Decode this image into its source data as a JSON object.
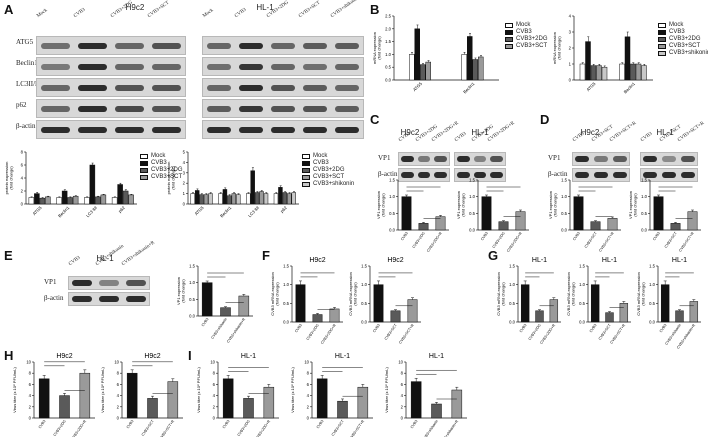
{
  "panels": {
    "A": "A",
    "B": "B",
    "C": "C",
    "D": "D",
    "E": "E",
    "F": "F",
    "G": "G",
    "H": "H",
    "I": "I"
  },
  "cells": {
    "h9c2": "H9c2",
    "hl1": "HL-1"
  },
  "blotA_left": {
    "lanes": [
      "Mock",
      "CVB3",
      "CVB3+2DG",
      "CVB3+SCT"
    ],
    "rows": [
      "ATG5",
      "Beclin1",
      "LC3II/LCI",
      "p62",
      "β-actin"
    ]
  },
  "blotA_right": {
    "lanes": [
      "Mock",
      "CVB3",
      "CVB3+2DG",
      "CVB3+SCT",
      "CVB3+shikonin"
    ]
  },
  "blotC": {
    "lanesL": [
      "CVB3",
      "CVB3+2DG",
      "CVB3+2DG+R"
    ],
    "lanesR": [
      "CVB3",
      "CVB3+2DG",
      "CVB3+2DG+R"
    ],
    "rows": [
      "VP1",
      "β-actin"
    ]
  },
  "blotD": {
    "lanesL": [
      "CVB3",
      "CVB3+SCT",
      "CVB3+SCT+R"
    ],
    "lanesR": [
      "CVB3",
      "CVB3+SCT",
      "CVB3+SCT+R"
    ],
    "rows": [
      "VP1",
      "β-actin"
    ]
  },
  "blotE": {
    "lanes": [
      "CVB3",
      "CVB3+shikonin",
      "CVB3+shikonin+R"
    ],
    "rows": [
      "VP1",
      "β-actin"
    ]
  },
  "legendA_left": [
    "Mock",
    "CVB3",
    "CVB3+2DG",
    "CVB3+SCT"
  ],
  "legendA_right": [
    "Mock",
    "CVB3",
    "CVB3+2DG",
    "CVB3+SCT",
    "CVB3+shikonin"
  ],
  "legendB_left": [
    "Mock",
    "CVB3",
    "CVB3+2DG",
    "CVB3+SCT"
  ],
  "legendB_right": [
    "Mock",
    "CVB3",
    "CVB3+2DG",
    "CVB3+SCT",
    "CVB3+shikonin"
  ],
  "colors": {
    "mock": "#ffffff",
    "cvb3": "#111111",
    "dg": "#5a5a5a",
    "sct": "#9a9a9a",
    "shikonin": "#c8c8c8",
    "band": "#1a1a1a",
    "blot_bg": "#d8d8d8"
  },
  "chart_data": [
    {
      "id": "A-left",
      "type": "bar",
      "ylabel": "protein expression\n(fold change)",
      "categories": [
        "ATG5",
        "Beclin1",
        "LC3 II/I",
        "p62"
      ],
      "ylim": [
        0,
        8
      ],
      "yticks": [
        "0",
        "2",
        "4",
        "6",
        "8"
      ],
      "series": [
        {
          "name": "Mock",
          "values": [
            1.0,
            1.0,
            1.0,
            1.0
          ],
          "err": [
            0.1,
            0.1,
            0.1,
            0.1
          ]
        },
        {
          "name": "CVB3",
          "values": [
            1.6,
            2.0,
            6.0,
            3.0
          ],
          "err": [
            0.2,
            0.2,
            0.3,
            0.2
          ]
        },
        {
          "name": "CVB3+2DG",
          "values": [
            0.9,
            1.0,
            1.1,
            2.0
          ],
          "err": [
            0.1,
            0.1,
            0.1,
            0.2
          ]
        },
        {
          "name": "CVB3+SCT",
          "values": [
            1.1,
            1.2,
            1.4,
            1.4
          ],
          "err": [
            0.1,
            0.1,
            0.1,
            0.1
          ]
        }
      ]
    },
    {
      "id": "A-right",
      "type": "bar",
      "ylabel": "protein expression\n(fold change)",
      "categories": [
        "ATG5",
        "Beclin1",
        "LC3 II/I",
        "p62"
      ],
      "ylim": [
        0,
        5
      ],
      "yticks": [
        "0",
        "1",
        "2",
        "3",
        "4",
        "5"
      ],
      "series": [
        {
          "name": "Mock",
          "values": [
            1.0,
            1.0,
            1.0,
            1.0
          ],
          "err": [
            0.1,
            0.1,
            0.1,
            0.1
          ]
        },
        {
          "name": "CVB3",
          "values": [
            1.3,
            1.4,
            3.2,
            1.6
          ],
          "err": [
            0.15,
            0.15,
            0.3,
            0.15
          ]
        },
        {
          "name": "CVB3+2DG",
          "values": [
            0.9,
            0.8,
            1.1,
            1.1
          ],
          "err": [
            0.1,
            0.1,
            0.1,
            0.1
          ]
        },
        {
          "name": "CVB3+SCT",
          "values": [
            0.9,
            1.0,
            1.2,
            1.0
          ],
          "err": [
            0.1,
            0.1,
            0.1,
            0.1
          ]
        },
        {
          "name": "CVB3+shikonin",
          "values": [
            1.0,
            0.9,
            1.0,
            1.1
          ],
          "err": [
            0.1,
            0.1,
            0.1,
            0.1
          ]
        }
      ]
    },
    {
      "id": "B-left",
      "type": "bar",
      "ylabel": "mRNA expression\n(fold change)",
      "categories": [
        "ATG5",
        "Beclin1"
      ],
      "ylim": [
        0,
        2.5
      ],
      "yticks": [
        "0.0",
        "0.5",
        "1.0",
        "1.5",
        "2.0",
        "2.5"
      ],
      "series": [
        {
          "name": "Mock",
          "values": [
            1.0,
            1.0
          ],
          "err": [
            0.08,
            0.08
          ]
        },
        {
          "name": "CVB3",
          "values": [
            2.0,
            1.7
          ],
          "err": [
            0.15,
            0.12
          ]
        },
        {
          "name": "CVB3+2DG",
          "values": [
            0.6,
            0.8
          ],
          "err": [
            0.05,
            0.06
          ]
        },
        {
          "name": "CVB3+SCT",
          "values": [
            0.7,
            0.9
          ],
          "err": [
            0.06,
            0.06
          ]
        }
      ]
    },
    {
      "id": "B-right",
      "type": "bar",
      "ylabel": "mRNA expression\n(fold change)",
      "categories": [
        "ATG5",
        "Beclin1"
      ],
      "ylim": [
        0,
        4
      ],
      "yticks": [
        "0",
        "1",
        "2",
        "3",
        "4"
      ],
      "series": [
        {
          "name": "Mock",
          "values": [
            1.0,
            1.0
          ],
          "err": [
            0.08,
            0.08
          ]
        },
        {
          "name": "CVB3",
          "values": [
            2.4,
            2.7
          ],
          "err": [
            0.3,
            0.3
          ]
        },
        {
          "name": "CVB3+2DG",
          "values": [
            0.9,
            1.0
          ],
          "err": [
            0.08,
            0.08
          ]
        },
        {
          "name": "CVB3+SCT",
          "values": [
            0.9,
            1.0
          ],
          "err": [
            0.08,
            0.08
          ]
        },
        {
          "name": "CVB3+shikonin",
          "values": [
            0.8,
            0.9
          ],
          "err": [
            0.08,
            0.08
          ]
        }
      ]
    },
    {
      "id": "C-1",
      "type": "bar",
      "ylabel": "VP1 expression\n(fold change)",
      "categories": [
        "CVB3",
        "CVB3+2DG",
        "CVB3+2DG+R"
      ],
      "values": [
        1.0,
        0.2,
        0.4
      ],
      "err": [
        0.05,
        0.03,
        0.04
      ],
      "ylim": [
        0,
        1.5
      ],
      "yticks": [
        "0.0",
        "0.5",
        "1.0",
        "1.5"
      ]
    },
    {
      "id": "C-2",
      "type": "bar",
      "ylabel": "VP1 expression\n(fold change)",
      "categories": [
        "CVB3",
        "CVB3+2DG",
        "CVB3+2DG+R"
      ],
      "values": [
        1.0,
        0.25,
        0.55
      ],
      "err": [
        0.05,
        0.03,
        0.05
      ],
      "ylim": [
        0,
        1.5
      ],
      "yticks": [
        "0.0",
        "0.5",
        "1.0",
        "1.5"
      ]
    },
    {
      "id": "D-1",
      "type": "bar",
      "ylabel": "VP1 expression\n(fold change)",
      "categories": [
        "CVB3",
        "CVB3+SCT",
        "CVB3+SCT+R"
      ],
      "values": [
        1.0,
        0.25,
        0.35
      ],
      "err": [
        0.05,
        0.03,
        0.04
      ],
      "ylim": [
        0,
        1.5
      ],
      "yticks": [
        "0.0",
        "0.5",
        "1.0",
        "1.5"
      ]
    },
    {
      "id": "D-2",
      "type": "bar",
      "ylabel": "VP1 expression\n(fold change)",
      "categories": [
        "CVB3",
        "CVB3+SCT",
        "CVB3+SCT+R"
      ],
      "values": [
        1.0,
        0.2,
        0.55
      ],
      "err": [
        0.05,
        0.03,
        0.05
      ],
      "ylim": [
        0,
        1.5
      ],
      "yticks": [
        "0.0",
        "0.5",
        "1.0",
        "1.5"
      ]
    },
    {
      "id": "E",
      "type": "bar",
      "ylabel": "VP1 expression\n(fold change)",
      "categories": [
        "CVB3",
        "CVB3+shikonin",
        "CVB3+shikonin+R"
      ],
      "values": [
        1.0,
        0.25,
        0.6
      ],
      "err": [
        0.05,
        0.03,
        0.05
      ],
      "ylim": [
        0,
        1.5
      ],
      "yticks": [
        "0.0",
        "0.5",
        "1.0",
        "1.5"
      ]
    },
    {
      "id": "F-1",
      "type": "bar",
      "title": "H9c2",
      "ylabel": "CVB3 mRNA expression\n(fold change)",
      "categories": [
        "CVB3",
        "CVB3+2DG",
        "CVB3+2DG+R"
      ],
      "values": [
        1.0,
        0.2,
        0.35
      ],
      "err": [
        0.1,
        0.03,
        0.04
      ],
      "ylim": [
        0,
        1.5
      ],
      "yticks": [
        "0.0",
        "0.5",
        "1.0",
        "1.5"
      ]
    },
    {
      "id": "F-2",
      "type": "bar",
      "title": "H9c2",
      "ylabel": "CVB3 mRNA expression\n(fold change)",
      "categories": [
        "CVB3",
        "CVB3+SCT",
        "CVB3+SCT+R"
      ],
      "values": [
        1.0,
        0.3,
        0.6
      ],
      "err": [
        0.1,
        0.03,
        0.05
      ],
      "ylim": [
        0,
        1.5
      ],
      "yticks": [
        "0.0",
        "0.5",
        "1.0",
        "1.5"
      ]
    },
    {
      "id": "G-1",
      "type": "bar",
      "title": "HL-1",
      "ylabel": "CVB3 mRNA expression\n(fold change)",
      "categories": [
        "CVB3",
        "CVB3+2DG",
        "CVB3+2DG+R"
      ],
      "values": [
        1.0,
        0.3,
        0.6
      ],
      "err": [
        0.1,
        0.03,
        0.05
      ],
      "ylim": [
        0,
        1.5
      ],
      "yticks": [
        "0.0",
        "0.5",
        "1.0",
        "1.5"
      ]
    },
    {
      "id": "G-2",
      "type": "bar",
      "title": "HL-1",
      "ylabel": "CVB3 mRNA expression\n(fold change)",
      "categories": [
        "CVB3",
        "CVB3+SCT",
        "CVB3+SCT+R"
      ],
      "values": [
        1.0,
        0.25,
        0.5
      ],
      "err": [
        0.1,
        0.03,
        0.05
      ],
      "ylim": [
        0,
        1.5
      ],
      "yticks": [
        "0.0",
        "0.5",
        "1.0",
        "1.5"
      ]
    },
    {
      "id": "G-3",
      "type": "bar",
      "title": "HL-1",
      "ylabel": "CVB3 mRNA expression\n(fold change)",
      "categories": [
        "CVB3",
        "CVB3+shikonin",
        "CVB3+shikonin+R"
      ],
      "values": [
        1.0,
        0.3,
        0.55
      ],
      "err": [
        0.1,
        0.03,
        0.05
      ],
      "ylim": [
        0,
        1.5
      ],
      "yticks": [
        "0.0",
        "0.5",
        "1.0",
        "1.5"
      ]
    },
    {
      "id": "H-1",
      "type": "bar",
      "title": "H9c2",
      "ylabel": "Virus titer (x 10⁸ PFU/mL)",
      "categories": [
        "CVB3",
        "CVB3+2DG",
        "CVB3+2DG+R"
      ],
      "values": [
        7.0,
        4.0,
        8.0
      ],
      "err": [
        0.6,
        0.4,
        0.6
      ],
      "ylim": [
        0,
        10
      ],
      "yticks": [
        "0",
        "2",
        "4",
        "6",
        "8",
        "10"
      ]
    },
    {
      "id": "H-2",
      "type": "bar",
      "title": "H9c2",
      "ylabel": "Virus titer (x 10⁸ PFU/mL)",
      "categories": [
        "CVB3",
        "CVB3+SCT",
        "CVB3+SCT+R"
      ],
      "values": [
        8.0,
        3.5,
        6.5
      ],
      "err": [
        0.6,
        0.4,
        0.5
      ],
      "ylim": [
        0,
        10
      ],
      "yticks": [
        "0",
        "2",
        "4",
        "6",
        "8",
        "10"
      ]
    },
    {
      "id": "I-1",
      "type": "bar",
      "title": "HL-1",
      "ylabel": "Virus titer (x 10⁸ PFU/mL)",
      "categories": [
        "CVB3",
        "CVB3+2DG",
        "CVB3+2DG+R"
      ],
      "values": [
        7.0,
        3.5,
        5.5
      ],
      "err": [
        0.6,
        0.4,
        0.5
      ],
      "ylim": [
        0,
        10
      ],
      "yticks": [
        "0",
        "2",
        "4",
        "6",
        "8",
        "10"
      ]
    },
    {
      "id": "I-2",
      "type": "bar",
      "title": "HL-1",
      "ylabel": "Virus titer (x 10⁸ PFU/mL)",
      "categories": [
        "CVB3",
        "CVB3+SCT",
        "CVB3+SCT+R"
      ],
      "values": [
        7.0,
        3.0,
        5.5
      ],
      "err": [
        0.6,
        0.4,
        0.5
      ],
      "ylim": [
        0,
        10
      ],
      "yticks": [
        "0",
        "2",
        "4",
        "6",
        "8",
        "10"
      ]
    },
    {
      "id": "I-3",
      "type": "bar",
      "title": "HL-1",
      "ylabel": "Virus titer (x 10⁸ PFU/mL)",
      "categories": [
        "CVB3",
        "CVB3+shikonin",
        "CVB3+shikonin+R"
      ],
      "values": [
        6.5,
        2.5,
        5.0
      ],
      "err": [
        0.6,
        0.3,
        0.5
      ],
      "ylim": [
        0,
        10
      ],
      "yticks": [
        "0",
        "2",
        "4",
        "6",
        "8",
        "10"
      ]
    }
  ]
}
